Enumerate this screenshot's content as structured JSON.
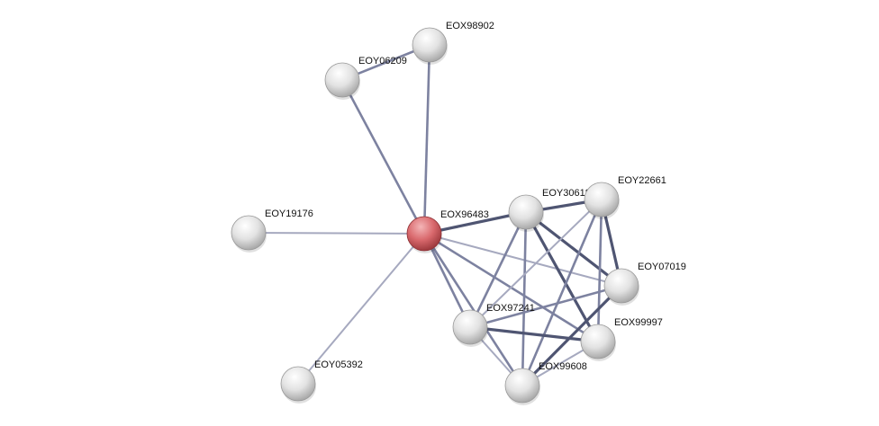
{
  "nodes": [
    {
      "id": "EOX98902",
      "color": "#e8e8e8"
    },
    {
      "id": "EOY06209",
      "color": "#e8e8e8"
    },
    {
      "id": "EOY19176",
      "color": "#e8e8e8"
    },
    {
      "id": "EOX96483",
      "color": "#d9696d",
      "query": true
    },
    {
      "id": "EOY30618",
      "color": "#e8e8e8"
    },
    {
      "id": "EOY22661",
      "color": "#e8e8e8"
    },
    {
      "id": "EOY07019",
      "color": "#e8e8e8"
    },
    {
      "id": "EOX97241",
      "color": "#e8e8e8"
    },
    {
      "id": "EOX99997",
      "color": "#e8e8e8"
    },
    {
      "id": "EOX99608",
      "color": "#e8e8e8"
    },
    {
      "id": "EOY05392",
      "color": "#e8e8e8"
    }
  ],
  "edges": [
    {
      "source": "EOX96483",
      "target": "EOX98902",
      "strength": "medium"
    },
    {
      "source": "EOX96483",
      "target": "EOY06209",
      "strength": "medium"
    },
    {
      "source": "EOY06209",
      "target": "EOX98902",
      "strength": "medium"
    },
    {
      "source": "EOX96483",
      "target": "EOY19176",
      "strength": "light"
    },
    {
      "source": "EOX96483",
      "target": "EOY05392",
      "strength": "light"
    },
    {
      "source": "EOX96483",
      "target": "EOY30618",
      "strength": "strong"
    },
    {
      "source": "EOX96483",
      "target": "EOY07019",
      "strength": "light"
    },
    {
      "source": "EOX96483",
      "target": "EOX99997",
      "strength": "medium"
    },
    {
      "source": "EOX96483",
      "target": "EOX97241",
      "strength": "medium"
    },
    {
      "source": "EOX96483",
      "target": "EOX99608",
      "strength": "medium"
    },
    {
      "source": "EOY30618",
      "target": "EOY22661",
      "strength": "strong"
    },
    {
      "source": "EOY30618",
      "target": "EOX97241",
      "strength": "medium"
    },
    {
      "source": "EOY30618",
      "target": "EOX99608",
      "strength": "medium"
    },
    {
      "source": "EOY30618",
      "target": "EOY07019",
      "strength": "strong"
    },
    {
      "source": "EOY30618",
      "target": "EOX99997",
      "strength": "strong"
    },
    {
      "source": "EOY22661",
      "target": "EOX97241",
      "strength": "light"
    },
    {
      "source": "EOY22661",
      "target": "EOX99608",
      "strength": "medium"
    },
    {
      "source": "EOY22661",
      "target": "EOX99997",
      "strength": "medium"
    },
    {
      "source": "EOY22661",
      "target": "EOY07019",
      "strength": "strong"
    },
    {
      "source": "EOY07019",
      "target": "EOX97241",
      "strength": "medium"
    },
    {
      "source": "EOY07019",
      "target": "EOX99608",
      "strength": "strong"
    },
    {
      "source": "EOX97241",
      "target": "EOX99997",
      "strength": "strong"
    },
    {
      "source": "EOX97241",
      "target": "EOX99608",
      "strength": "light"
    },
    {
      "source": "EOX99997",
      "target": "EOX99608",
      "strength": "light"
    }
  ],
  "edge_colors": {
    "strong": "#4f5572",
    "medium": "#7d82a0",
    "light": "#a6a9bf"
  }
}
